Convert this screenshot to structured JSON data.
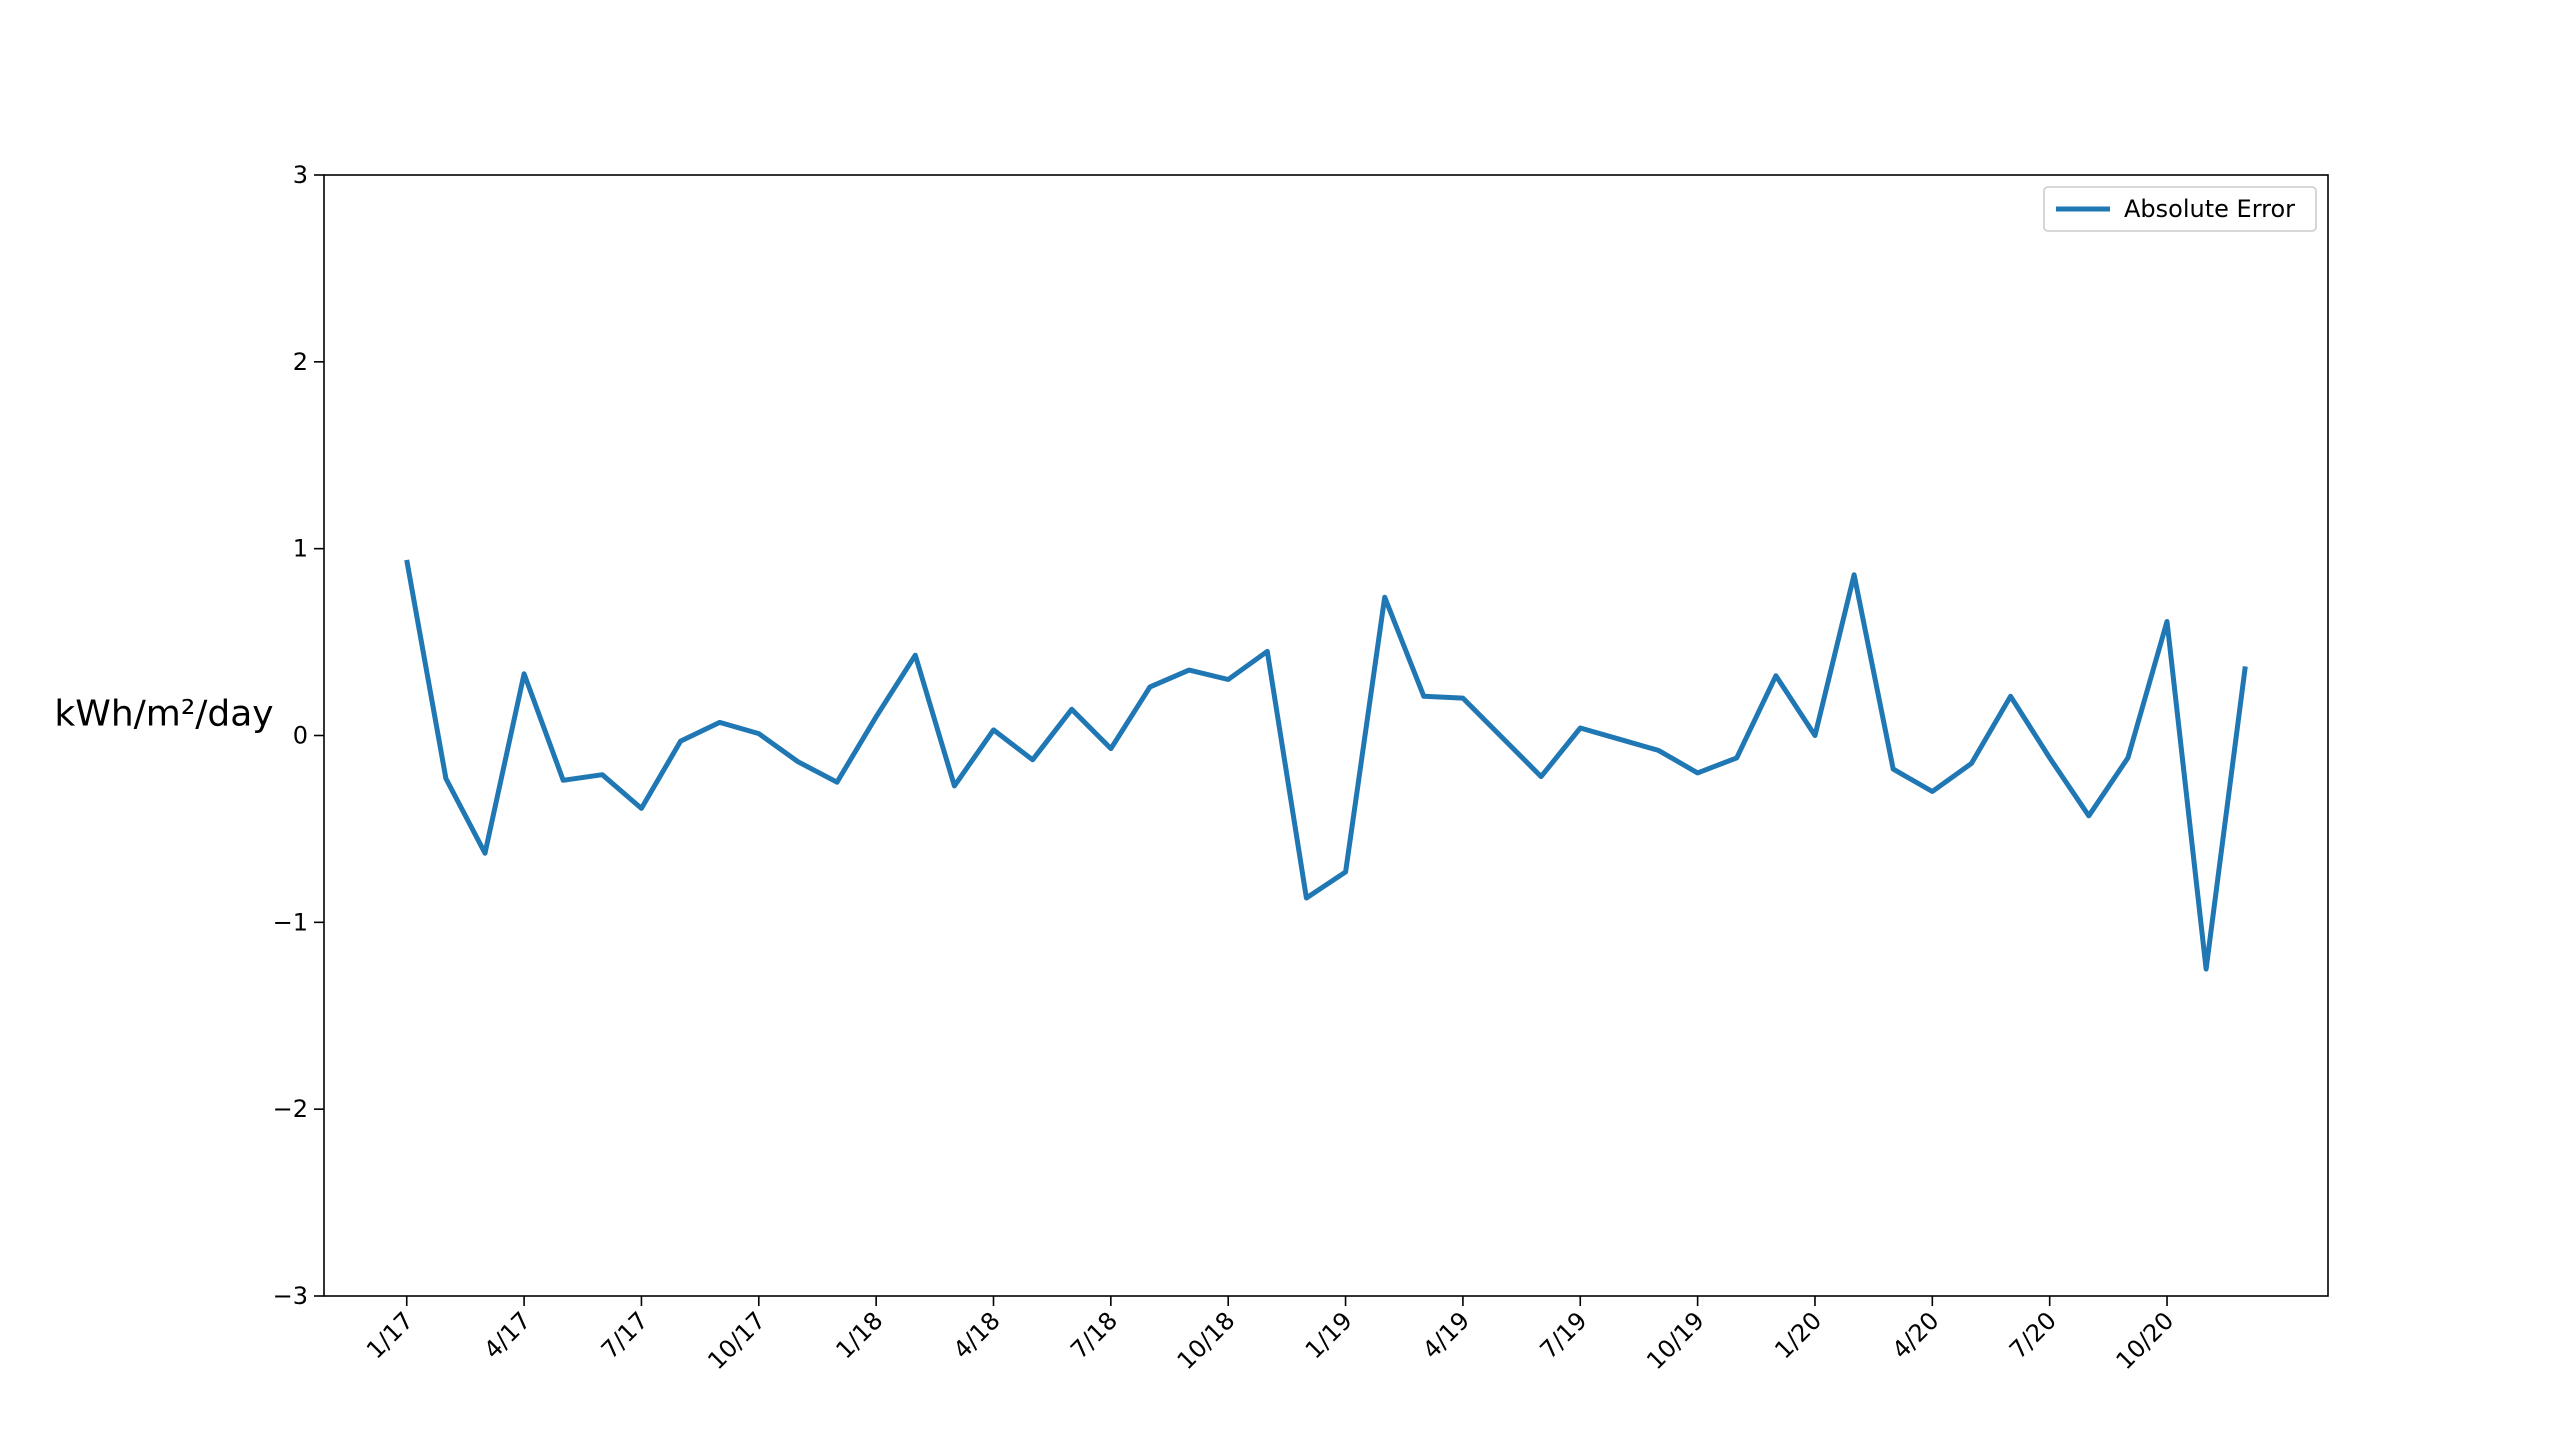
{
  "chart_data": {
    "type": "line",
    "title": "",
    "xlabel": "",
    "ylabel": "kWh/m²/day",
    "ylim": [
      -3,
      3
    ],
    "yticks": [
      -3,
      -2,
      -1,
      0,
      1,
      2,
      3
    ],
    "yticklabels": [
      "−3",
      "−2",
      "−1",
      "0",
      "1",
      "2",
      "3"
    ],
    "xticks": [
      {
        "index": 0,
        "label": "1/17"
      },
      {
        "index": 3,
        "label": "4/17"
      },
      {
        "index": 6,
        "label": "7/17"
      },
      {
        "index": 9,
        "label": "10/17"
      },
      {
        "index": 12,
        "label": "1/18"
      },
      {
        "index": 15,
        "label": "4/18"
      },
      {
        "index": 18,
        "label": "7/18"
      },
      {
        "index": 21,
        "label": "10/18"
      },
      {
        "index": 24,
        "label": "1/19"
      },
      {
        "index": 27,
        "label": "4/19"
      },
      {
        "index": 30,
        "label": "7/19"
      },
      {
        "index": 33,
        "label": "10/19"
      },
      {
        "index": 36,
        "label": "1/20"
      },
      {
        "index": 39,
        "label": "4/20"
      },
      {
        "index": 42,
        "label": "7/20"
      },
      {
        "index": 45,
        "label": "10/20"
      }
    ],
    "grid": false,
    "legend": {
      "position": "top-right"
    },
    "series": [
      {
        "name": "Absolute Error",
        "color": "#1f77b4",
        "values": [
          0.94,
          -0.23,
          -0.63,
          0.33,
          -0.24,
          -0.21,
          -0.39,
          -0.03,
          0.07,
          0.01,
          -0.14,
          -0.25,
          0.1,
          0.43,
          -0.27,
          0.03,
          -0.13,
          0.14,
          -0.07,
          0.26,
          0.35,
          0.3,
          0.45,
          -0.87,
          -0.73,
          0.74,
          0.21,
          0.2,
          -0.01,
          -0.22,
          0.04,
          -0.02,
          -0.08,
          -0.2,
          -0.12,
          0.32,
          0.0,
          0.86,
          -0.18,
          -0.3,
          -0.15,
          0.21,
          -0.12,
          -0.43,
          -0.12,
          0.61,
          -1.25,
          0.37
        ]
      }
    ]
  }
}
